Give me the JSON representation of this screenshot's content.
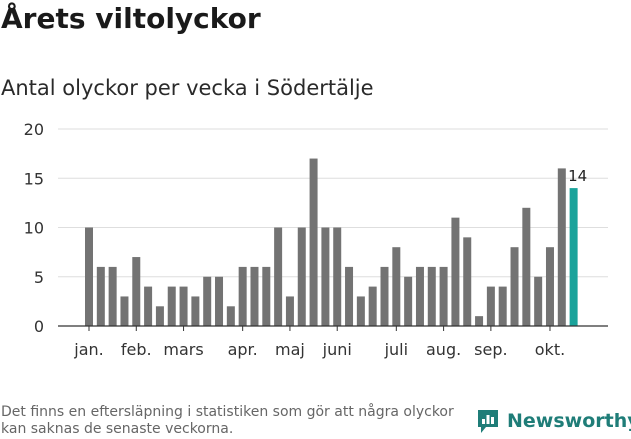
{
  "header": {
    "title": "Årets viltolyckor",
    "subtitle": "Antal olyckor per vecka i Södertälje"
  },
  "colors": {
    "bar": "#737373",
    "highlight": "#1aa39b",
    "brand": "#1f7d78"
  },
  "chart_data": {
    "type": "bar",
    "title": "Årets viltolyckor",
    "subtitle": "Antal olyckor per vecka i Södertälje",
    "xlabel": "",
    "ylabel": "",
    "ylim": [
      0,
      20
    ],
    "yticks": [
      0,
      5,
      10,
      15,
      20
    ],
    "grid": true,
    "values": [
      10,
      6,
      6,
      3,
      7,
      4,
      2,
      4,
      4,
      3,
      5,
      5,
      2,
      6,
      6,
      6,
      10,
      3,
      10,
      17,
      10,
      10,
      6,
      3,
      4,
      6,
      8,
      5,
      6,
      6,
      6,
      11,
      9,
      1,
      4,
      4,
      8,
      12,
      5,
      8,
      16,
      14
    ],
    "highlight_index": 41,
    "highlight_label": "14",
    "month_labels": [
      {
        "label": "jan.",
        "week_index": 0
      },
      {
        "label": "feb.",
        "week_index": 4
      },
      {
        "label": "mars",
        "week_index": 8
      },
      {
        "label": "apr.",
        "week_index": 13
      },
      {
        "label": "maj",
        "week_index": 17
      },
      {
        "label": "juni",
        "week_index": 21
      },
      {
        "label": "juli",
        "week_index": 26
      },
      {
        "label": "aug.",
        "week_index": 30
      },
      {
        "label": "sep.",
        "week_index": 34
      },
      {
        "label": "okt.",
        "week_index": 39
      }
    ]
  },
  "footer": {
    "note": "Det finns en eftersläpning i statistiken som gör att några olyckor kan saknas de senaste veckorna.",
    "brand": "Newsworthy"
  }
}
